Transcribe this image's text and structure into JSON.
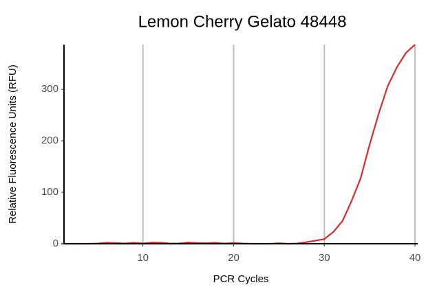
{
  "chart_data": {
    "type": "line",
    "title": "Lemon Cherry Gelato 48448",
    "x_label": "PCR Cycles",
    "y_label": "Relative Fluorescence Units (RFU)",
    "x": [
      1,
      2,
      3,
      4,
      5,
      6,
      7,
      8,
      9,
      10,
      11,
      12,
      13,
      14,
      15,
      16,
      17,
      18,
      19,
      20,
      21,
      22,
      23,
      24,
      25,
      26,
      27,
      28,
      29,
      30,
      31,
      32,
      33,
      34,
      35,
      36,
      37,
      38,
      39,
      40
    ],
    "series": [
      {
        "name": "RFU",
        "color": "#dc2a2a",
        "values": [
          0,
          0,
          0,
          0,
          0.5,
          2,
          1.5,
          0.5,
          2,
          0.5,
          2.5,
          2,
          0.5,
          0.5,
          2.5,
          1.5,
          1,
          2,
          0.5,
          1.5,
          0.5,
          0,
          0,
          0,
          1,
          0,
          0.5,
          3,
          6,
          9,
          23,
          44,
          83,
          127,
          193,
          253,
          307,
          343,
          371,
          387
        ]
      }
    ],
    "xlim": [
      1.3,
      40.3
    ],
    "xticks": [
      10,
      20,
      30,
      40
    ],
    "ylim": [
      0,
      387
    ],
    "yticks": [
      0,
      100,
      200,
      300
    ],
    "grid": "x"
  }
}
